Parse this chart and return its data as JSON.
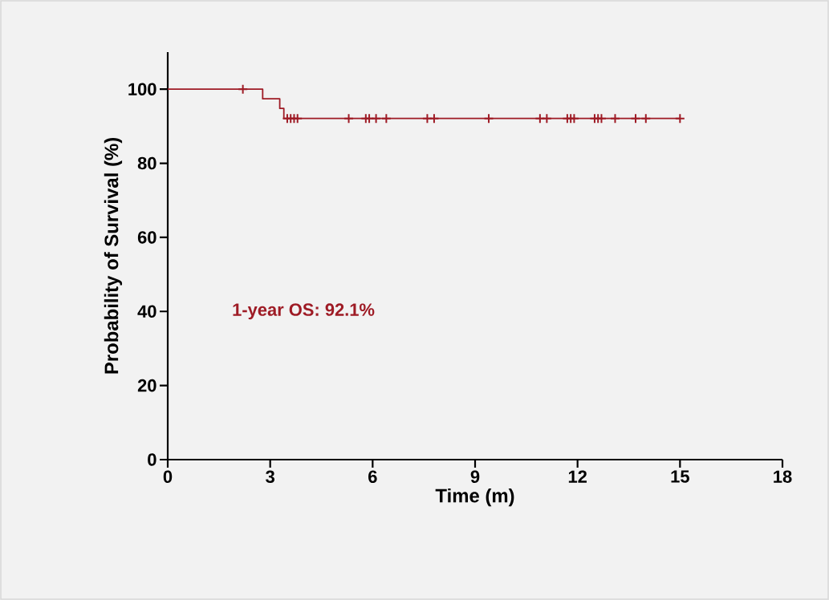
{
  "chart_data": {
    "type": "step",
    "xlabel": "Time (m)",
    "ylabel": "Probability of Survival (%)",
    "xlim": [
      0,
      18
    ],
    "xticks": [
      0,
      3,
      6,
      9,
      12,
      15,
      18
    ],
    "ylim": [
      0,
      110
    ],
    "yticks": [
      0,
      20,
      40,
      60,
      80,
      100
    ],
    "annotations": [
      "1-year OS: 92.1%"
    ],
    "series": [
      {
        "color": "#9e1b25",
        "x": [
          0,
          2.78,
          3.28,
          3.4,
          15
        ],
        "values": [
          100,
          97.4,
          94.8,
          92.1,
          92.1
        ]
      },
      {
        "type": "scatter",
        "marker": "cross",
        "color": "#9e1b25",
        "x": [
          2.2,
          3.5,
          3.6,
          3.7,
          3.8,
          5.3,
          5.8,
          5.9,
          6.1,
          6.4,
          7.6,
          7.8,
          9.4,
          10.9,
          11.1,
          11.7,
          11.8,
          11.9,
          12.5,
          12.6,
          12.7,
          13.1,
          13.7,
          14.0,
          15.0
        ],
        "values": [
          100,
          92.1,
          92.1,
          92.1,
          92.1,
          92.1,
          92.1,
          92.1,
          92.1,
          92.1,
          92.1,
          92.1,
          92.1,
          92.1,
          92.1,
          92.1,
          92.1,
          92.1,
          92.1,
          92.1,
          92.1,
          92.1,
          92.1,
          92.1,
          92.1
        ]
      }
    ]
  }
}
